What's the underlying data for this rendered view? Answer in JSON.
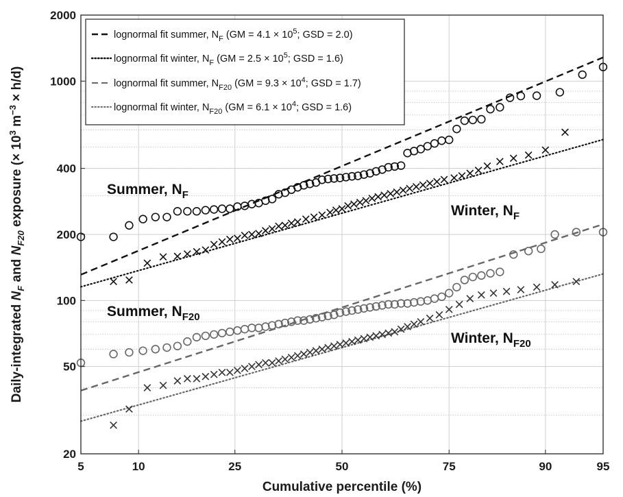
{
  "chart_data": {
    "type": "scatter",
    "x_scale": "normal-probability (percentile)",
    "y_scale": "log",
    "xlim": [
      5,
      95
    ],
    "ylim": [
      20,
      2000
    ],
    "grid": true,
    "xlabel": "Cumulative percentile (%)",
    "ylabel_parts": {
      "prefix": "Daily-integrated ",
      "nf": "N",
      "nf_sub": "F",
      "and": " and ",
      "nf20": "N",
      "nf20_sub": "F20",
      "exposure": " exposure (× 10",
      "exp3": "3",
      "unit_m": " m",
      "exp_m3": "−3",
      "unit_tail": " × h/d)"
    },
    "x_ticks": [
      5,
      10,
      25,
      50,
      75,
      90,
      95
    ],
    "x_tick_labels": [
      "5",
      "10",
      "25",
      "50",
      "75",
      "90",
      "95"
    ],
    "y_ticks": [
      20,
      50,
      100,
      200,
      400,
      1000,
      2000
    ],
    "y_tick_labels": [
      "20",
      "50",
      "100",
      "200",
      "400",
      "1000",
      "2000"
    ],
    "legend": {
      "placement": "top-left",
      "entries": [
        {
          "pre": "lognormal fit summer, N",
          "sub": "F",
          "mid": " (GM = 4.1 × 10",
          "sup": "5",
          "post": "; GSD = 2.0)",
          "style": "dashed",
          "color": "#111111"
        },
        {
          "pre": "lognormal fit winter, N",
          "sub": "F",
          "mid": " (GM = 2.5 × 10",
          "sup": "5",
          "post": "; GSD = 1.6)",
          "style": "dotted",
          "color": "#111111"
        },
        {
          "pre": "lognormal fit summer, N",
          "sub": "F20",
          "mid": " (GM = 9.3 × 10",
          "sup": "4",
          "post": "; GSD = 1.7)",
          "style": "dashed",
          "color": "#666666"
        },
        {
          "pre": "lognormal fit winter, N",
          "sub": "F20",
          "mid": " (GM = 6.1 × 10",
          "sup": "4",
          "post": "; GSD = 1.6)",
          "style": "dotted",
          "color": "#666666"
        }
      ]
    },
    "fit_lines": [
      {
        "name": "lognormal fit summer, NF",
        "gm": 410,
        "gsd": 2.0,
        "style": "dashed",
        "color": "#111111"
      },
      {
        "name": "lognormal fit winter, NF",
        "gm": 250,
        "gsd": 1.6,
        "style": "dotted",
        "color": "#111111"
      },
      {
        "name": "lognormal fit summer, NF20",
        "gm": 93,
        "gsd": 1.7,
        "style": "dashed",
        "color": "#666666"
      },
      {
        "name": "lognormal fit winter, NF20",
        "gm": 61,
        "gsd": 1.6,
        "style": "dotted",
        "color": "#666666"
      }
    ],
    "series": [
      {
        "label": {
          "main": "Summer, N",
          "sub": "F"
        },
        "marker": "circle",
        "color": "#111111",
        "points": [
          [
            5,
            195
          ],
          [
            7.5,
            195
          ],
          [
            9,
            220
          ],
          [
            10.5,
            235
          ],
          [
            12,
            240
          ],
          [
            13.5,
            240
          ],
          [
            15,
            255
          ],
          [
            16.5,
            255
          ],
          [
            18,
            255
          ],
          [
            19.5,
            258
          ],
          [
            21,
            260
          ],
          [
            22.5,
            262
          ],
          [
            24,
            262
          ],
          [
            25.5,
            268
          ],
          [
            27,
            270
          ],
          [
            28.5,
            275
          ],
          [
            30,
            278
          ],
          [
            31.5,
            285
          ],
          [
            33,
            290
          ],
          [
            34.5,
            305
          ],
          [
            36,
            310
          ],
          [
            37.5,
            320
          ],
          [
            39,
            328
          ],
          [
            40.5,
            335
          ],
          [
            42,
            340
          ],
          [
            43.5,
            345
          ],
          [
            45,
            355
          ],
          [
            46.5,
            358
          ],
          [
            48,
            360
          ],
          [
            49.5,
            362
          ],
          [
            51,
            365
          ],
          [
            52.5,
            368
          ],
          [
            54,
            370
          ],
          [
            55.5,
            375
          ],
          [
            57,
            380
          ],
          [
            58.5,
            388
          ],
          [
            60,
            395
          ],
          [
            61.5,
            405
          ],
          [
            63,
            408
          ],
          [
            64.5,
            412
          ],
          [
            66,
            470
          ],
          [
            67.5,
            480
          ],
          [
            69,
            490
          ],
          [
            70.5,
            505
          ],
          [
            72,
            520
          ],
          [
            73.5,
            535
          ],
          [
            75,
            540
          ],
          [
            76.5,
            605
          ],
          [
            78,
            660
          ],
          [
            79.5,
            665
          ],
          [
            81,
            670
          ],
          [
            82.5,
            745
          ],
          [
            84,
            760
          ],
          [
            85.5,
            840
          ],
          [
            87,
            855
          ],
          [
            89,
            858
          ],
          [
            91.5,
            890
          ],
          [
            93.5,
            1070
          ],
          [
            95,
            1160
          ]
        ]
      },
      {
        "label": {
          "main": "Winter, N",
          "sub": "F"
        },
        "marker": "x",
        "color": "#111111",
        "points": [
          [
            7.5,
            122
          ],
          [
            9,
            124
          ],
          [
            11,
            148
          ],
          [
            13,
            158
          ],
          [
            15,
            159
          ],
          [
            16.5,
            163
          ],
          [
            18,
            167
          ],
          [
            19.5,
            170
          ],
          [
            21,
            180
          ],
          [
            22.5,
            185
          ],
          [
            24,
            190
          ],
          [
            25.5,
            192
          ],
          [
            27,
            198
          ],
          [
            28.5,
            200
          ],
          [
            30,
            202
          ],
          [
            31.5,
            208
          ],
          [
            33,
            212
          ],
          [
            34.5,
            218
          ],
          [
            36,
            220
          ],
          [
            37.5,
            225
          ],
          [
            39,
            228
          ],
          [
            41,
            235
          ],
          [
            43,
            240
          ],
          [
            45,
            245
          ],
          [
            47,
            252
          ],
          [
            48.5,
            258
          ],
          [
            50,
            262
          ],
          [
            51.5,
            270
          ],
          [
            53,
            275
          ],
          [
            54.5,
            280
          ],
          [
            56,
            285
          ],
          [
            57.5,
            292
          ],
          [
            59,
            297
          ],
          [
            60.5,
            302
          ],
          [
            62,
            307
          ],
          [
            63.5,
            312
          ],
          [
            65,
            318
          ],
          [
            66.5,
            324
          ],
          [
            68,
            330
          ],
          [
            69.5,
            336
          ],
          [
            71,
            342
          ],
          [
            72.5,
            348
          ],
          [
            74,
            356
          ],
          [
            76,
            362
          ],
          [
            77.5,
            370
          ],
          [
            79,
            380
          ],
          [
            80.5,
            392
          ],
          [
            82,
            410
          ],
          [
            84,
            430
          ],
          [
            86,
            445
          ],
          [
            88,
            460
          ],
          [
            90,
            485
          ],
          [
            92,
            585
          ]
        ]
      },
      {
        "label": {
          "main": "Summer, N",
          "sub": "F20"
        },
        "marker": "circle",
        "color": "#666666",
        "points": [
          [
            5,
            52
          ],
          [
            7.5,
            57
          ],
          [
            9,
            58
          ],
          [
            10.5,
            59
          ],
          [
            12,
            60
          ],
          [
            13.5,
            61
          ],
          [
            15,
            62
          ],
          [
            16.5,
            65
          ],
          [
            18,
            68
          ],
          [
            19.5,
            69
          ],
          [
            21,
            70
          ],
          [
            22.5,
            71
          ],
          [
            24,
            72
          ],
          [
            25.5,
            73
          ],
          [
            27,
            74
          ],
          [
            28.5,
            75
          ],
          [
            30,
            75
          ],
          [
            31.5,
            76
          ],
          [
            33,
            77
          ],
          [
            34.5,
            78
          ],
          [
            36,
            79
          ],
          [
            37.5,
            80
          ],
          [
            39,
            81
          ],
          [
            40.5,
            81
          ],
          [
            42,
            82
          ],
          [
            43.5,
            83
          ],
          [
            45,
            84
          ],
          [
            46.5,
            85
          ],
          [
            48,
            86
          ],
          [
            49.5,
            88
          ],
          [
            51,
            89
          ],
          [
            52.5,
            90
          ],
          [
            54,
            91
          ],
          [
            55.5,
            92
          ],
          [
            57,
            93
          ],
          [
            58.5,
            94
          ],
          [
            60,
            95
          ],
          [
            61.5,
            96
          ],
          [
            63,
            96
          ],
          [
            64.5,
            97
          ],
          [
            66,
            97
          ],
          [
            67.5,
            98
          ],
          [
            69,
            99
          ],
          [
            70.5,
            100
          ],
          [
            72,
            102
          ],
          [
            73.5,
            104
          ],
          [
            75,
            108
          ],
          [
            76.5,
            115
          ],
          [
            78,
            124
          ],
          [
            79.5,
            128
          ],
          [
            81,
            130
          ],
          [
            82.5,
            133
          ],
          [
            84,
            135
          ],
          [
            86,
            162
          ],
          [
            88,
            168
          ],
          [
            89.5,
            172
          ],
          [
            91,
            200
          ],
          [
            93,
            205
          ],
          [
            95,
            205
          ]
        ]
      },
      {
        "label": {
          "main": "Winter, N",
          "sub": "F20"
        },
        "marker": "x",
        "color": "#333333",
        "points": [
          [
            7.5,
            27
          ],
          [
            9,
            32
          ],
          [
            11,
            40
          ],
          [
            13,
            41
          ],
          [
            15,
            43
          ],
          [
            16.5,
            44
          ],
          [
            18,
            44
          ],
          [
            19.5,
            45
          ],
          [
            21,
            46
          ],
          [
            22.5,
            47
          ],
          [
            24,
            47
          ],
          [
            25.5,
            48
          ],
          [
            27,
            49
          ],
          [
            28.5,
            50
          ],
          [
            30,
            51
          ],
          [
            31.5,
            52
          ],
          [
            33,
            52
          ],
          [
            34.5,
            53
          ],
          [
            36,
            54
          ],
          [
            37.5,
            55
          ],
          [
            39,
            56
          ],
          [
            40.5,
            57
          ],
          [
            42,
            58
          ],
          [
            43.5,
            59
          ],
          [
            45,
            60
          ],
          [
            46.5,
            61
          ],
          [
            48,
            62
          ],
          [
            49.5,
            63
          ],
          [
            51,
            64
          ],
          [
            52.5,
            65
          ],
          [
            54,
            66
          ],
          [
            55.5,
            67
          ],
          [
            57,
            68
          ],
          [
            58.5,
            69
          ],
          [
            60,
            70
          ],
          [
            61.5,
            71
          ],
          [
            63,
            72
          ],
          [
            64.5,
            74
          ],
          [
            66,
            76
          ],
          [
            67.5,
            78
          ],
          [
            69,
            80
          ],
          [
            71,
            83
          ],
          [
            73,
            86
          ],
          [
            75,
            91
          ],
          [
            77,
            96
          ],
          [
            79,
            102
          ],
          [
            81,
            106
          ],
          [
            83,
            108
          ],
          [
            85,
            110
          ],
          [
            87,
            112
          ],
          [
            89,
            115
          ],
          [
            91,
            118
          ],
          [
            93,
            122
          ]
        ]
      }
    ]
  }
}
